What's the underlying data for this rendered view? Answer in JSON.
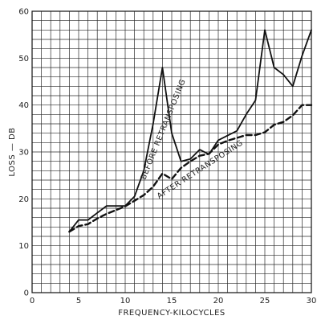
{
  "chart_data": {
    "type": "line",
    "xlabel": "FREQUENCY-KILOCYCLES",
    "ylabel": "LOSS — DB",
    "xlim": [
      0,
      30
    ],
    "ylim": [
      0,
      60
    ],
    "x_ticks": [
      0,
      5,
      10,
      15,
      20,
      25,
      30
    ],
    "y_ticks": [
      0,
      10,
      20,
      30,
      40,
      50,
      60
    ],
    "grid": true,
    "series": [
      {
        "name": "BEFORE RETRANSPOSING",
        "style": "solid",
        "color": "#111111",
        "x": [
          4,
          5,
          6,
          7,
          8,
          9,
          10,
          11,
          12,
          13,
          14,
          15,
          16,
          17,
          18,
          19,
          20,
          21,
          22,
          23,
          24,
          25,
          26,
          27,
          28,
          29,
          30
        ],
        "y": [
          13,
          15.5,
          15.5,
          17,
          18.5,
          18.5,
          18.5,
          20.5,
          26,
          36,
          48,
          34,
          28,
          28.5,
          30.5,
          29.5,
          32.5,
          33.5,
          34.5,
          38,
          41,
          56,
          48,
          46.5,
          44,
          50.5,
          56
        ]
      },
      {
        "name": "AFTER RETRANSPOSING",
        "style": "dashed",
        "color": "#111111",
        "x": [
          4,
          5,
          6,
          7,
          8,
          9,
          10,
          11,
          12,
          13,
          14,
          15,
          16,
          17,
          18,
          19,
          20,
          21,
          22,
          23,
          24,
          25,
          26,
          27,
          28,
          29,
          30
        ],
        "y": [
          13,
          14.2,
          14.6,
          15.8,
          16.8,
          17.6,
          18.4,
          19.6,
          20.8,
          22.6,
          25.4,
          24.2,
          26.6,
          28,
          29.2,
          29.6,
          31.6,
          32.4,
          33,
          33.6,
          33.6,
          34.2,
          35.8,
          36.4,
          37.8,
          40,
          40
        ]
      }
    ],
    "annotations": [
      {
        "text": "BEFORE RETRANSPOSING",
        "series": 0
      },
      {
        "text": "AFTER RETRANSPOSING",
        "series": 1
      }
    ]
  }
}
